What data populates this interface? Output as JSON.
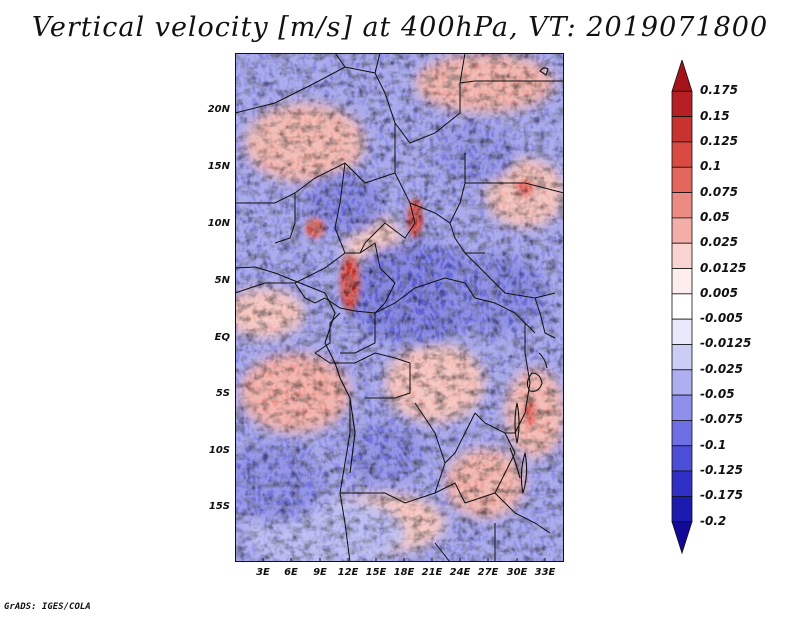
{
  "title": "Vertical velocity [m/s] at 400hPa, VT: 2019071800",
  "credit": "GrADS: IGES/COLA",
  "map": {
    "region": "Central Africa",
    "lat_labels": [
      "20N",
      "15N",
      "10N",
      "5N",
      "EQ",
      "5S",
      "10S",
      "15S"
    ],
    "lon_labels": [
      "3E",
      "6E",
      "9E",
      "12E",
      "15E",
      "18E",
      "21E",
      "24E",
      "27E",
      "30E",
      "33E"
    ]
  },
  "colorbar": {
    "labels": [
      "0.175",
      "0.15",
      "0.125",
      "0.1",
      "0.075",
      "0.05",
      "0.025",
      "0.0125",
      "0.005",
      "-0.005",
      "-0.0125",
      "-0.025",
      "-0.05",
      "-0.075",
      "-0.1",
      "-0.125",
      "-0.175",
      "-0.2"
    ],
    "colors": [
      "#a3131a",
      "#b61f24",
      "#c8332f",
      "#d94b42",
      "#e4675d",
      "#ec8b82",
      "#f3aea7",
      "#f9d3cf",
      "#fdeeed",
      "#ffffff",
      "#e9e9fb",
      "#cccdf5",
      "#adaff0",
      "#8e8feb",
      "#6d6fe2",
      "#4c4ed6",
      "#3030c6",
      "#1b1bb0",
      "#120a96"
    ]
  }
}
